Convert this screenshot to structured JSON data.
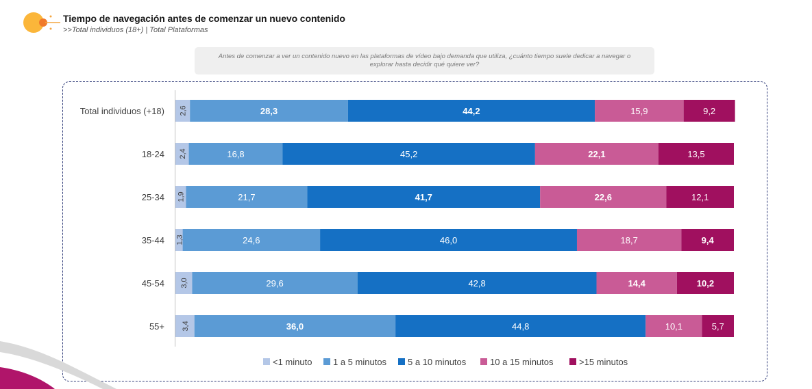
{
  "header": {
    "title": "Tiempo de navegación antes de comenzar un nuevo contenido",
    "subtitle": ">>Total individuos (18+) | Total Plataformas"
  },
  "question": "Antes de comenzar a ver un contenido nuevo en las plataformas de vídeo bajo demanda que utiliza, ¿cuánto tiempo suele dedicar a navegar o explorar hasta decidir qué quiere ver?",
  "chart_data": {
    "type": "bar",
    "orientation": "horizontal",
    "stacked": true,
    "percent_stacked": true,
    "categories": [
      "Total individuos (+18)",
      "18-24",
      "25-34",
      "35-44",
      "45-54",
      "55+"
    ],
    "series": [
      {
        "name": "<1 minuto",
        "color": "#b4c7e7",
        "values": [
          2.6,
          2.4,
          1.9,
          1.3,
          3.0,
          3.4
        ],
        "labels": [
          "2,6",
          "2,4",
          "1,9",
          "1,3",
          "3,0",
          "3,4"
        ],
        "bold": [
          false,
          false,
          false,
          false,
          false,
          false
        ]
      },
      {
        "name": "1 a 5 minutos",
        "color": "#5b9bd5",
        "values": [
          28.3,
          16.8,
          21.7,
          24.6,
          29.6,
          36.0
        ],
        "labels": [
          "28,3",
          "16,8",
          "21,7",
          "24,6",
          "29,6",
          "36,0"
        ],
        "bold": [
          true,
          false,
          false,
          false,
          false,
          true
        ]
      },
      {
        "name": "5 a 10 minutos",
        "color": "#1570c4",
        "values": [
          44.2,
          45.2,
          41.7,
          46.0,
          42.8,
          44.8
        ],
        "labels": [
          "44,2",
          "45,2",
          "41,7",
          "46,0",
          "42,8",
          "44,8"
        ],
        "bold": [
          true,
          false,
          true,
          false,
          false,
          false
        ]
      },
      {
        "name": "10 a 15 minutos",
        "color": "#c95b96",
        "values": [
          15.9,
          22.1,
          22.6,
          18.7,
          14.4,
          10.1
        ],
        "labels": [
          "15,9",
          "22,1",
          "22,6",
          "18,7",
          "14,4",
          "10,1"
        ],
        "bold": [
          false,
          true,
          true,
          false,
          true,
          false
        ]
      },
      {
        "name": ">15 minutos",
        "color": "#a0105f",
        "values": [
          9.2,
          13.5,
          12.1,
          9.4,
          10.2,
          5.7
        ],
        "labels": [
          "9,2",
          "13,5",
          "12,1",
          "9,4",
          "10,2",
          "5,7"
        ],
        "bold": [
          false,
          false,
          false,
          true,
          true,
          false
        ]
      }
    ],
    "xlim": [
      0,
      100
    ],
    "legend": "bottom",
    "grid": false
  },
  "colors": {
    "logo_main": "#fbb63a",
    "logo_accent": "#f07a2a",
    "frame_border": "#2e3a78",
    "corner_band": "#b0156a"
  }
}
